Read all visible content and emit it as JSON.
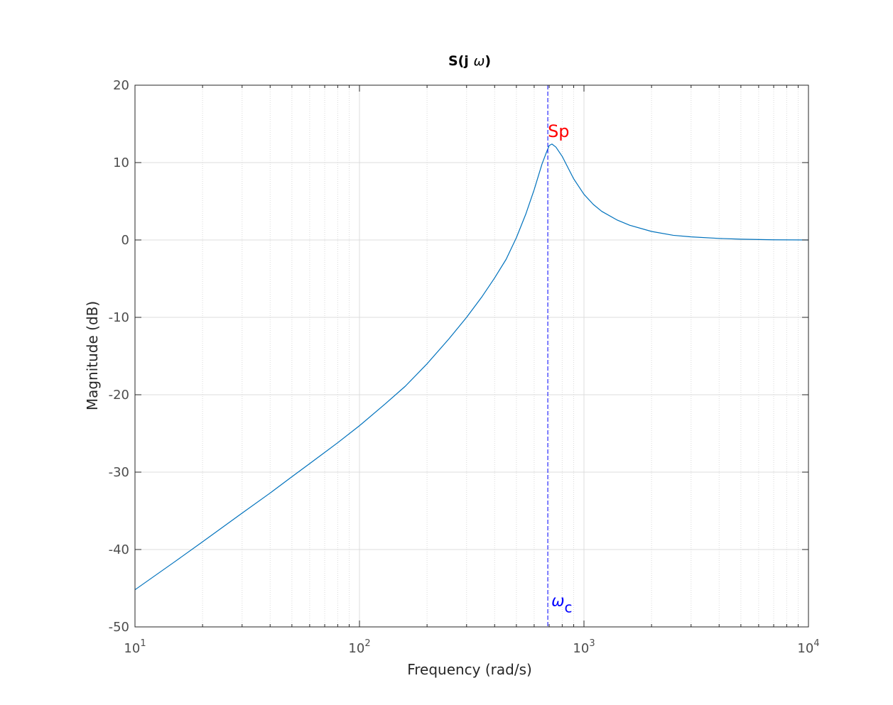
{
  "chart_data": {
    "type": "line",
    "title_main": "S(j ",
    "title_symbol": "ω",
    "title_end": ")",
    "xlabel": "Frequency  (rad/s)",
    "ylabel": "Magnitude (dB)",
    "xscale": "log",
    "xlim": [
      10,
      10000
    ],
    "ylim": [
      -50,
      20
    ],
    "grid": true,
    "minor_grid_x": true,
    "x_ticks": [
      {
        "value": 10,
        "base": "10",
        "exp": "1"
      },
      {
        "value": 100,
        "base": "10",
        "exp": "2"
      },
      {
        "value": 1000,
        "base": "10",
        "exp": "3"
      },
      {
        "value": 10000,
        "base": "10",
        "exp": "4"
      }
    ],
    "y_ticks": [
      {
        "value": 20,
        "label": "20"
      },
      {
        "value": 10,
        "label": "10"
      },
      {
        "value": 0,
        "label": "0"
      },
      {
        "value": -10,
        "label": "-10"
      },
      {
        "value": -20,
        "label": "-20"
      },
      {
        "value": -30,
        "label": "-30"
      },
      {
        "value": -40,
        "label": "-40"
      },
      {
        "value": -50,
        "label": "-50"
      }
    ],
    "series": [
      {
        "color": "#0072bd",
        "x": [
          10,
          15,
          20,
          30,
          40,
          50,
          60,
          80,
          100,
          130,
          160,
          200,
          250,
          300,
          350,
          400,
          450,
          500,
          550,
          600,
          650,
          680,
          700,
          720,
          750,
          800,
          850,
          900,
          1000,
          1100,
          1200,
          1400,
          1600,
          2000,
          2500,
          3000,
          4000,
          5000,
          7000,
          10000
        ],
        "y": [
          -45.2,
          -41.6,
          -39.0,
          -35.3,
          -32.7,
          -30.6,
          -28.9,
          -26.2,
          -24.0,
          -21.2,
          -18.9,
          -16.0,
          -12.8,
          -10.0,
          -7.4,
          -4.9,
          -2.5,
          0.3,
          3.3,
          6.5,
          9.8,
          11.3,
          12.2,
          12.4,
          12.0,
          10.8,
          9.3,
          7.9,
          5.9,
          4.6,
          3.7,
          2.6,
          1.9,
          1.1,
          0.6,
          0.4,
          0.2,
          0.1,
          0.02,
          0.0
        ]
      }
    ],
    "crossover": {
      "x": 690,
      "color": "#0000ff",
      "label_symbol": "ω",
      "label_sub": "c"
    },
    "peak_label": {
      "text": "Sp",
      "x": 690,
      "y": 13.3,
      "color": "#ff0000"
    }
  }
}
